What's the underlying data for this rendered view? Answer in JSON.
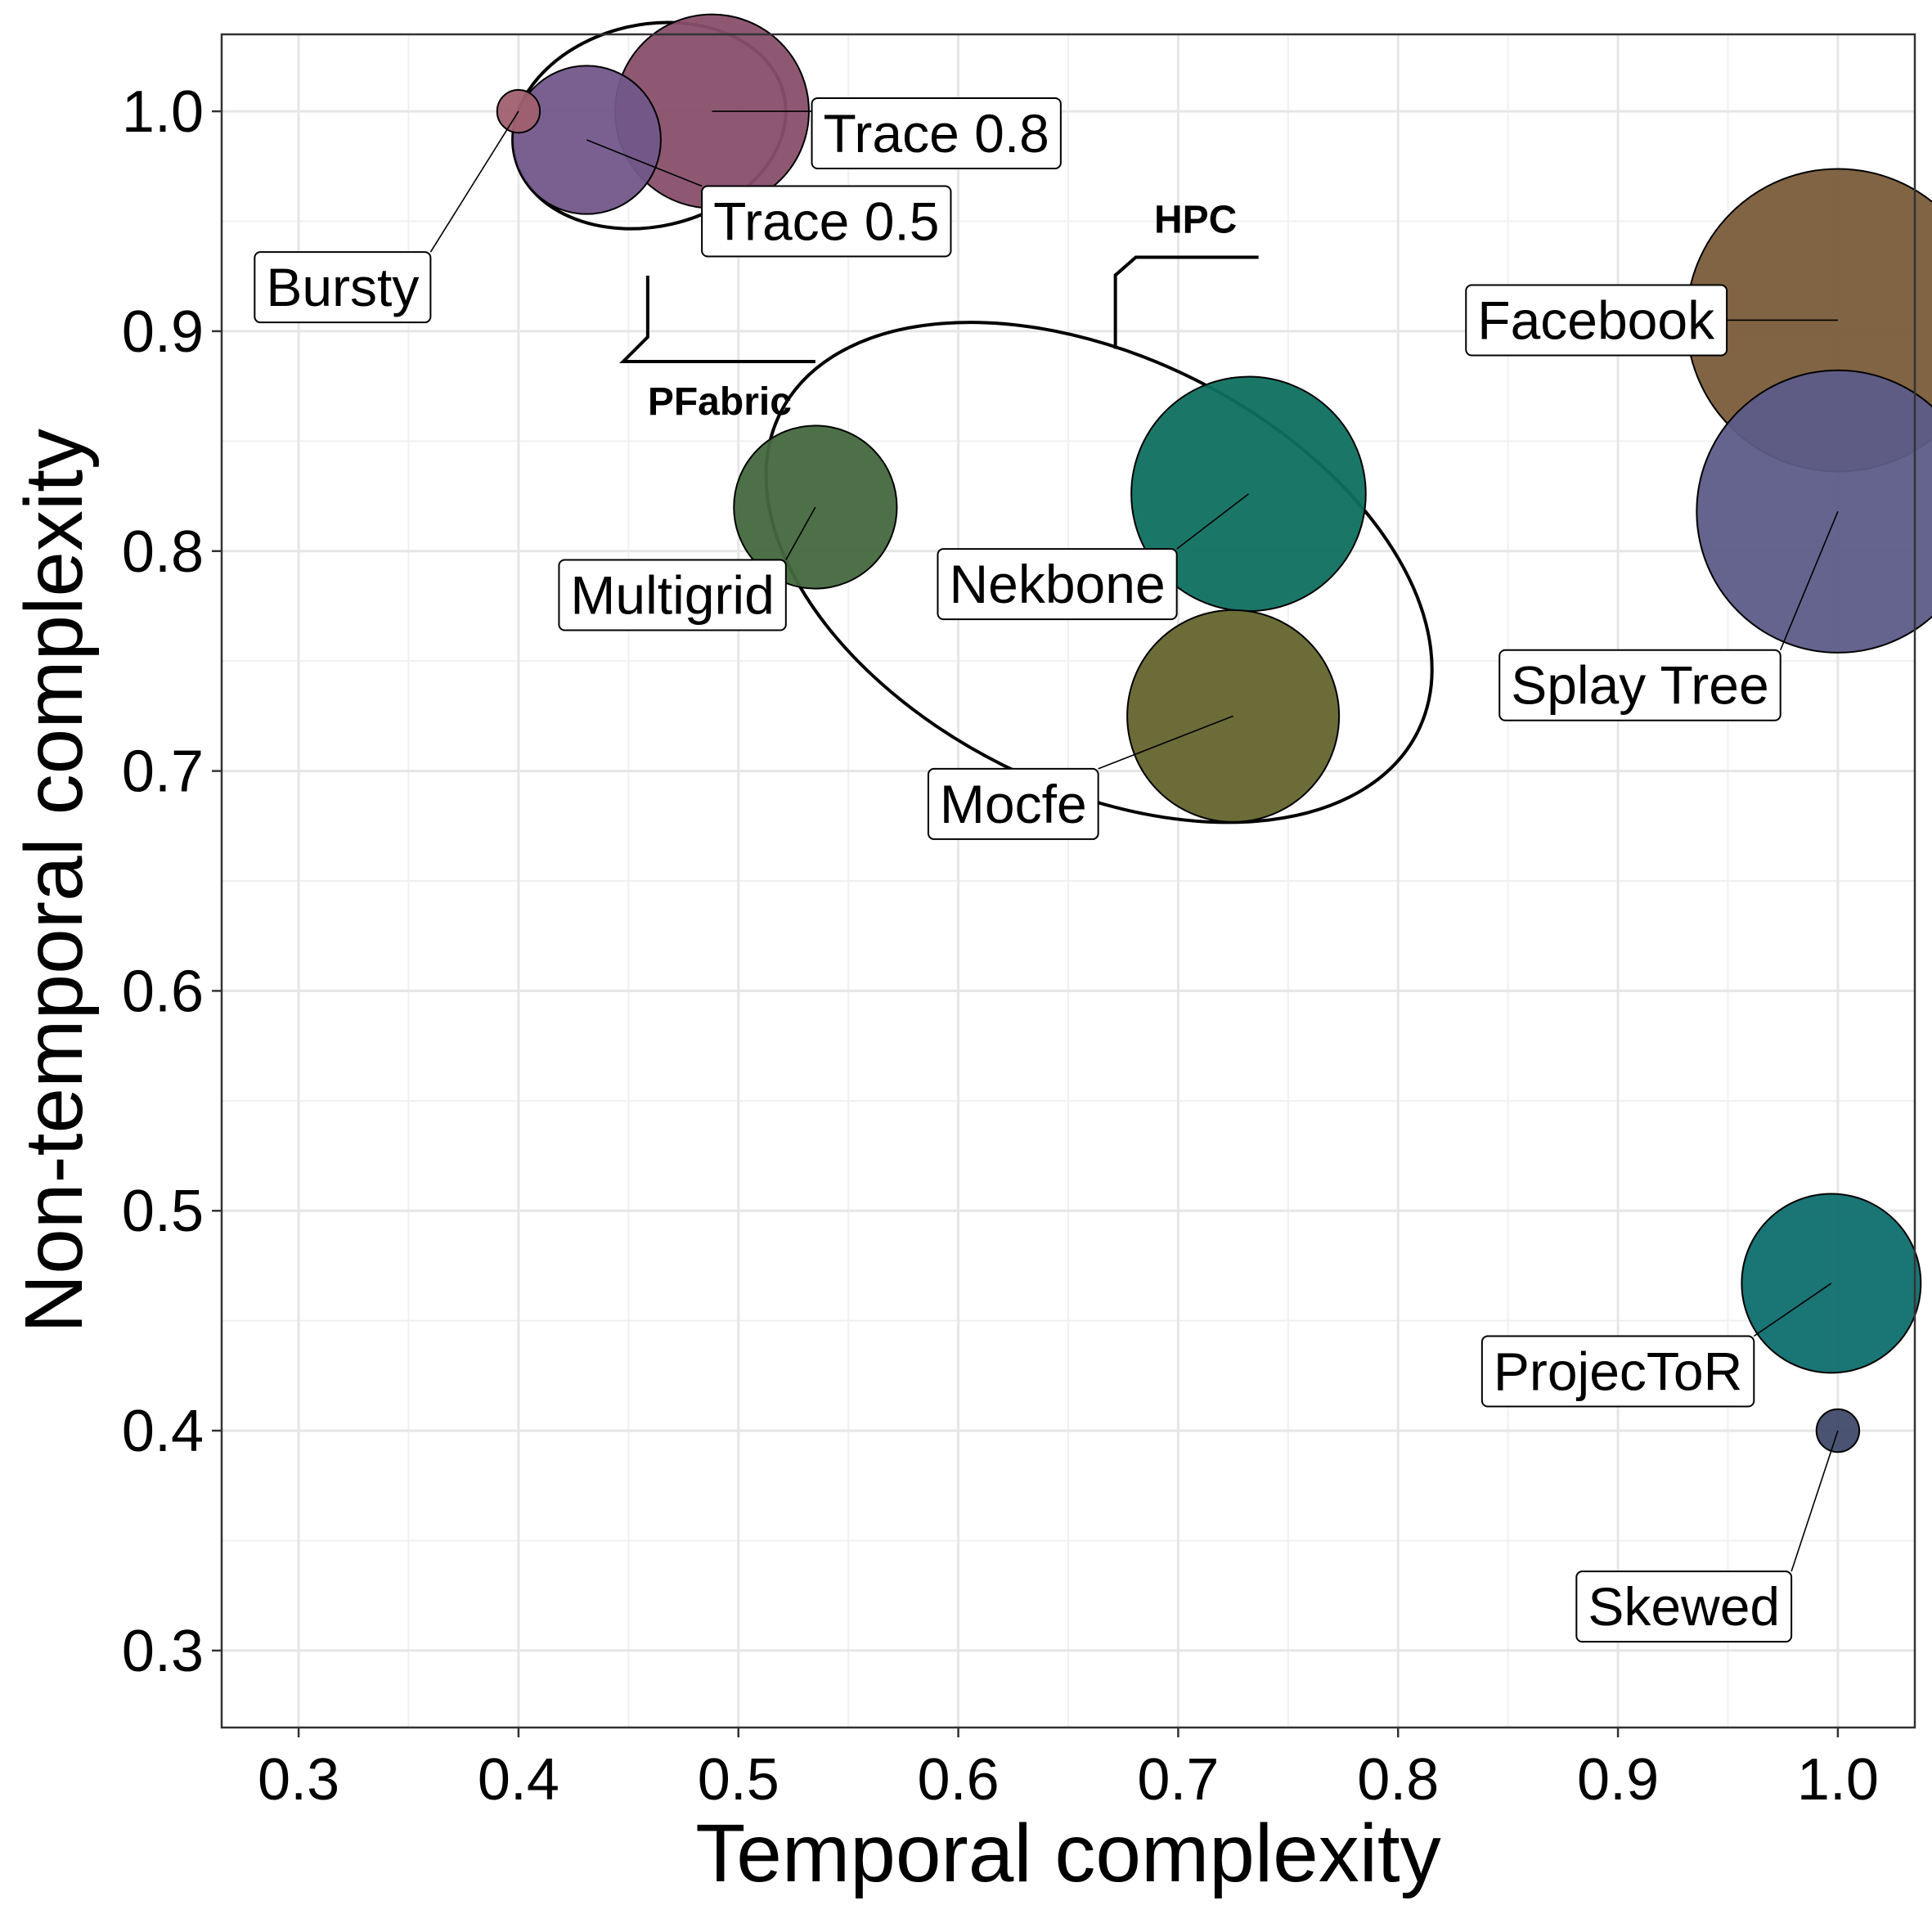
{
  "chart_data": {
    "type": "scatter",
    "xlabel": "Temporal complexity",
    "ylabel": "Non-temporal complexity",
    "xlim": [
      0.265,
      1.035
    ],
    "ylim": [
      0.265,
      1.035
    ],
    "x_ticks": [
      "0.3",
      "0.4",
      "0.5",
      "0.6",
      "0.7",
      "0.8",
      "0.9",
      "1.0"
    ],
    "y_ticks": [
      "0.3",
      "0.4",
      "0.5",
      "0.6",
      "0.7",
      "0.8",
      "0.9",
      "1.0"
    ],
    "grid": true,
    "legend": "none",
    "points": [
      {
        "label": "Facebook",
        "x": 1.0,
        "y": 0.905,
        "size": 1.0,
        "color": "#7a5c3a",
        "label_x": 0.89,
        "label_y": 0.905
      },
      {
        "label": "Splay Tree",
        "x": 1.0,
        "y": 0.818,
        "size": 0.87,
        "color": "#5c5c88",
        "label_x": 0.91,
        "label_y": 0.739
      },
      {
        "label": "Nekbone",
        "x": 0.732,
        "y": 0.826,
        "size": 0.6,
        "color": "#0e7060",
        "label_x": 0.645,
        "label_y": 0.785
      },
      {
        "label": "Mocfe",
        "x": 0.725,
        "y": 0.725,
        "size": 0.49,
        "color": "#64642e",
        "label_x": 0.625,
        "label_y": 0.685
      },
      {
        "label": "Multigrid",
        "x": 0.535,
        "y": 0.82,
        "size": 0.29,
        "color": "#45683e",
        "label_x": 0.47,
        "label_y": 0.78
      },
      {
        "label": "Trace 0.8",
        "x": 0.488,
        "y": 1.0,
        "size": 0.41,
        "color": "#884f6a",
        "label_x": 0.59,
        "label_y": 0.99
      },
      {
        "label": "Trace 0.5",
        "x": 0.431,
        "y": 0.987,
        "size": 0.24,
        "color": "#73578a",
        "label_x": 0.54,
        "label_y": 0.95
      },
      {
        "label": "Bursty",
        "x": 0.4,
        "y": 1.0,
        "size": 0.02,
        "color": "#a06070",
        "label_x": 0.32,
        "label_y": 0.92
      },
      {
        "label": "ProjecToR",
        "x": 0.997,
        "y": 0.467,
        "size": 0.35,
        "color": "#0e6e6e",
        "label_x": 0.9,
        "label_y": 0.427
      },
      {
        "label": "Skewed",
        "x": 1.0,
        "y": 0.4,
        "size": 0.02,
        "color": "#404a6a",
        "label_x": 0.93,
        "label_y": 0.32
      }
    ],
    "groups": [
      {
        "label": "PFabric",
        "members": [
          "Trace 0.8",
          "Trace 0.5"
        ]
      },
      {
        "label": "HPC",
        "members": [
          "Multigrid",
          "Nekbone",
          "Mocfe"
        ]
      }
    ]
  }
}
